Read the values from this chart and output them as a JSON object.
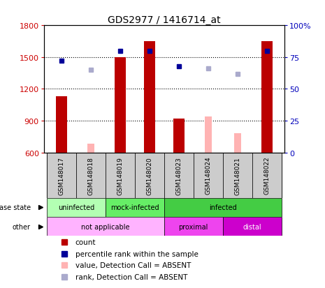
{
  "title": "GDS2977 / 1416714_at",
  "samples": [
    "GSM148017",
    "GSM148018",
    "GSM148019",
    "GSM148020",
    "GSM148023",
    "GSM148024",
    "GSM148021",
    "GSM148022"
  ],
  "counts_present": [
    1130,
    null,
    1500,
    1650,
    920,
    null,
    null,
    1650
  ],
  "counts_absent": [
    null,
    680,
    null,
    null,
    null,
    940,
    780,
    null
  ],
  "pct_present": [
    72,
    null,
    80,
    80,
    68,
    null,
    null,
    80
  ],
  "pct_absent": [
    null,
    65,
    null,
    null,
    null,
    66,
    62,
    null
  ],
  "ylim_left": [
    600,
    1800
  ],
  "ylim_right": [
    0,
    100
  ],
  "yticks_left": [
    600,
    900,
    1200,
    1500,
    1800
  ],
  "yticks_right": [
    0,
    25,
    50,
    75,
    100
  ],
  "ytick_right_labels": [
    "0",
    "25",
    "50",
    "75",
    "100%"
  ],
  "bar_color_present": "#bb0000",
  "bar_color_absent": "#ffb3b3",
  "dot_color_present": "#000099",
  "dot_color_absent": "#aaaacc",
  "left_tick_color": "#cc0000",
  "right_tick_color": "#0000bb",
  "grid_lines": [
    900,
    1200,
    1500
  ],
  "ds_groups": [
    {
      "label": "uninfected",
      "color": "#b3ffb3",
      "start": 0,
      "end": 2
    },
    {
      "label": "mock-infected",
      "color": "#66ee66",
      "start": 2,
      "end": 4
    },
    {
      "label": "infected",
      "color": "#44cc44",
      "start": 4,
      "end": 8
    }
  ],
  "ot_groups": [
    {
      "label": "not applicable",
      "color": "#ffb3ff",
      "text_color": "#000000",
      "start": 0,
      "end": 4
    },
    {
      "label": "proximal",
      "color": "#ee44ee",
      "text_color": "#000000",
      "start": 4,
      "end": 6
    },
    {
      "label": "distal",
      "color": "#cc00cc",
      "text_color": "#ffffff",
      "start": 6,
      "end": 8
    }
  ],
  "legend": [
    {
      "color": "#bb0000",
      "label": "count"
    },
    {
      "color": "#000099",
      "label": "percentile rank within the sample"
    },
    {
      "color": "#ffb3b3",
      "label": "value, Detection Call = ABSENT"
    },
    {
      "color": "#aaaacc",
      "label": "rank, Detection Call = ABSENT"
    }
  ],
  "bg_color": "#ffffff",
  "sample_box_color": "#cccccc"
}
